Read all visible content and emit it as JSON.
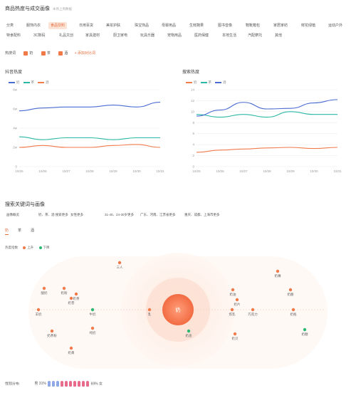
{
  "header": {
    "title": "商品热度与成交画像",
    "subtitle": "本周上周数据"
  },
  "categories": [
    {
      "label": "分类",
      "active": false
    },
    {
      "label": "服饰内衣",
      "active": false
    },
    {
      "label": "食品饮料",
      "active": true
    },
    {
      "label": "日用百货",
      "active": false
    },
    {
      "label": "美妆护肤",
      "active": false
    },
    {
      "label": "珠宝饰品",
      "active": false
    },
    {
      "label": "母婴用品",
      "active": false
    },
    {
      "label": "生鲜蔬果",
      "active": false
    },
    {
      "label": "图书音像",
      "active": false
    },
    {
      "label": "鞋靴箱包",
      "active": false
    },
    {
      "label": "家居家纺",
      "active": false
    },
    {
      "label": "鲜花绿植",
      "active": false
    },
    {
      "label": "运动户外",
      "active": false
    },
    {
      "label": "特食配料",
      "active": false
    },
    {
      "label": "3C数码",
      "active": false
    },
    {
      "label": "礼品文创",
      "active": false
    },
    {
      "label": "家具建材",
      "active": false
    },
    {
      "label": "厨卫家电",
      "active": false
    },
    {
      "label": "玩具乐器",
      "active": false
    },
    {
      "label": "宠物用品",
      "active": false
    },
    {
      "label": "医药保健",
      "active": false
    },
    {
      "label": "本地生活",
      "active": false
    },
    {
      "label": "汽配摩托",
      "active": false
    },
    {
      "label": "其他",
      "active": false
    }
  ],
  "filters": {
    "label": "热搜词",
    "items": [
      "奶",
      "茶",
      "酒"
    ],
    "add_label": "+ 添加对比词"
  },
  "chart_data": [
    {
      "type": "line",
      "title": "抖音热度",
      "x": [
        "10/25",
        "10/26",
        "10/27",
        "10/28",
        "10/29",
        "10/30",
        "10/31"
      ],
      "ylim": [
        0,
        8
      ],
      "yticks": [
        "0",
        "2w",
        "4w",
        "6w",
        "8w"
      ],
      "series": [
        {
          "name": "奶",
          "color": "#4a6bd1",
          "values": [
            5.8,
            6.1,
            6.2,
            6.2,
            6.4,
            6.2,
            6.7
          ]
        },
        {
          "name": "茶",
          "color": "#2bb8a6",
          "values": [
            3.1,
            2.8,
            3.0,
            3.0,
            2.8,
            3.0,
            3.0
          ]
        },
        {
          "name": "酒",
          "color": "#f07a4a",
          "values": [
            2.0,
            2.2,
            2.0,
            2.0,
            2.2,
            2.3,
            2.0
          ]
        }
      ],
      "grid": true,
      "legend": "top-left"
    },
    {
      "type": "line",
      "title": "搜索热度",
      "x": [
        "10/25",
        "10/26",
        "10/27",
        "10/28",
        "10/29",
        "10/30",
        "10/31"
      ],
      "ylim": [
        0,
        14
      ],
      "yticks": [
        "0",
        "2",
        "4",
        "6",
        "8",
        "10",
        "12",
        "14"
      ],
      "series": [
        {
          "name": "奶",
          "color": "#f07a4a",
          "values": [
            2.6,
            3.0,
            3.2,
            3.4,
            3.5,
            3.3,
            3.5
          ]
        },
        {
          "name": "茶",
          "color": "#2bb8a6",
          "values": [
            9.5,
            9.0,
            9.5,
            9.0,
            10.0,
            9.5,
            9.5
          ]
        },
        {
          "name": "酒",
          "color": "#4a6bd1",
          "values": [
            9.2,
            10.3,
            11.7,
            10.5,
            10.6,
            11.6,
            12.2
          ]
        }
      ],
      "grid": true,
      "legend": "top-left"
    }
  ],
  "keywords_section": {
    "title": "搜索关键词与画像",
    "tags": [
      "画像概览",
      "奶、茶、酒 搜索更多",
      "女性更多",
      "31-40、24-30岁更多",
      "广东、河南、江苏省更多",
      "重庆、成都、上海市更多"
    ],
    "tabs": [
      "奶",
      "茶",
      "酒"
    ],
    "legend_label": "热度指数",
    "legend_up": "上升",
    "legend_down": "下降",
    "center_word": "奶",
    "words": [
      {
        "label": "三人",
        "dir": "up"
      },
      {
        "label": "奶嘴",
        "dir": "up"
      },
      {
        "label": "酸奶",
        "dir": "up"
      },
      {
        "label": "奶粉",
        "dir": "up"
      },
      {
        "label": "奶茶",
        "dir": "up"
      },
      {
        "label": "牛奶",
        "dir": "down"
      },
      {
        "label": "奶油",
        "dir": "up"
      },
      {
        "label": "奶酪",
        "dir": "up"
      },
      {
        "label": "奶片",
        "dir": "up"
      },
      {
        "label": "奶昔",
        "dir": "up"
      },
      {
        "label": "羊奶",
        "dir": "up"
      },
      {
        "label": "乳",
        "dir": "up"
      },
      {
        "label": "炼乳",
        "dir": "up"
      },
      {
        "label": "巧克力",
        "dir": "up"
      },
      {
        "label": "奶瓶",
        "dir": "up"
      },
      {
        "label": "奶糖",
        "dir": "down"
      },
      {
        "label": "奶茶粉",
        "dir": "up"
      },
      {
        "label": "纯奶",
        "dir": "up"
      },
      {
        "label": "奶贝",
        "dir": "up"
      },
      {
        "label": "奶盖",
        "dir": "down"
      },
      {
        "label": "奶黄",
        "dir": "up"
      }
    ]
  },
  "gender": {
    "label": "性别分布",
    "male_label": "男 31%",
    "female_label": "69% 女",
    "male_color": "#8fa8e6",
    "female_color": "#e96b8c"
  }
}
